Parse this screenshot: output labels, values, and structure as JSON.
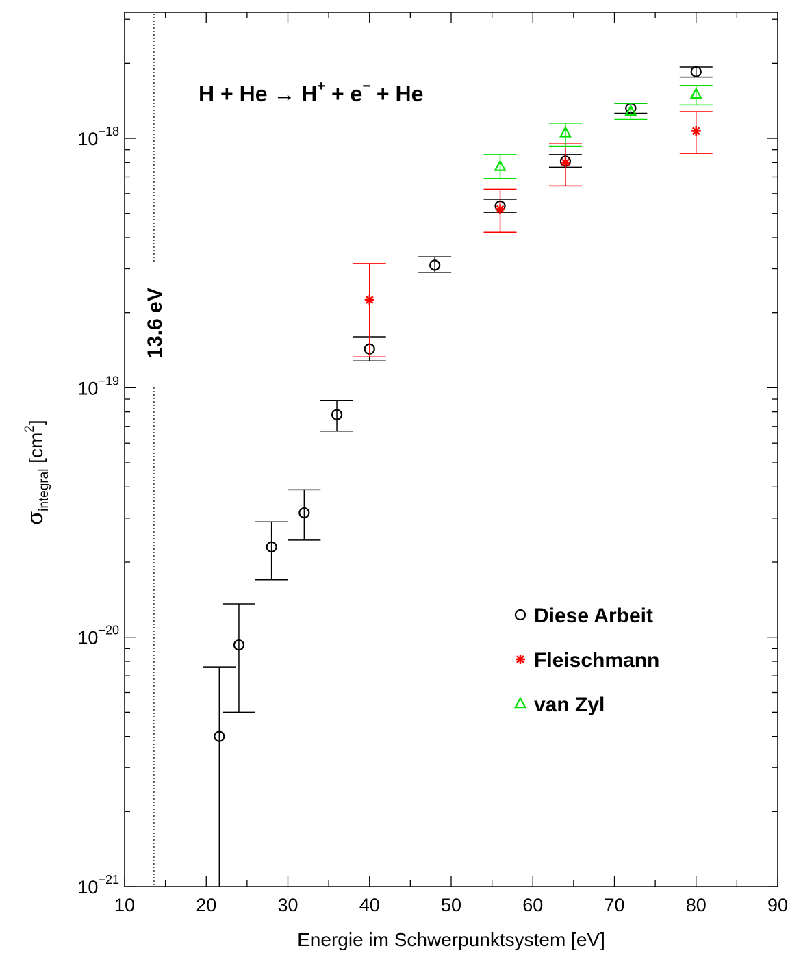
{
  "chart_data": {
    "type": "scatter",
    "annotation_reaction": {
      "lhs": "H + He",
      "arrow": "→",
      "product_base": "H",
      "product_sup": "+",
      "electron_base": " + e",
      "electron_sup": "−",
      "tail": " + He"
    },
    "xlabel": "Energie im Schwerpunktsystem [eV]",
    "ylabel_sigma": "σ",
    "ylabel_sub": "integral",
    "ylabel_unit": " [cm",
    "ylabel_unit_sup": "2",
    "ylabel_close": "]",
    "xlim": [
      10,
      90
    ],
    "ylim": [
      1e-21,
      3.2e-18
    ],
    "yscale": "log",
    "x_ticks": [
      "10",
      "20",
      "30",
      "40",
      "50",
      "60",
      "70",
      "80",
      "90"
    ],
    "y_ticks": [
      {
        "base": "10",
        "exp": "−21"
      },
      {
        "base": "10",
        "exp": "−20"
      },
      {
        "base": "10",
        "exp": "−19"
      },
      {
        "base": "10",
        "exp": "−18"
      }
    ],
    "threshold": {
      "x": 13.6,
      "label": "13.6 eV"
    },
    "legend_position": "lower-right",
    "series": [
      {
        "name": "Diese Arbeit",
        "marker": "circle",
        "color": "#000000",
        "points": [
          {
            "x": 21.6,
            "y": 4e-21,
            "lo": 9e-22,
            "hi": 7.6e-21
          },
          {
            "x": 24,
            "y": 9.3e-21,
            "lo": 5e-21,
            "hi": 1.36e-20
          },
          {
            "x": 28,
            "y": 2.3e-20,
            "lo": 1.7e-20,
            "hi": 2.9e-20
          },
          {
            "x": 32,
            "y": 3.15e-20,
            "lo": 2.45e-20,
            "hi": 3.9e-20
          },
          {
            "x": 36,
            "y": 7.8e-20,
            "lo": 6.7e-20,
            "hi": 8.9e-20
          },
          {
            "x": 40,
            "y": 1.43e-19,
            "lo": 1.28e-19,
            "hi": 1.6e-19
          },
          {
            "x": 48,
            "y": 3.1e-19,
            "lo": 2.9e-19,
            "hi": 3.35e-19
          },
          {
            "x": 56,
            "y": 5.35e-19,
            "lo": 5.05e-19,
            "hi": 5.7e-19
          },
          {
            "x": 64,
            "y": 8.1e-19,
            "lo": 7.65e-19,
            "hi": 8.6e-19
          },
          {
            "x": 72,
            "y": 1.32e-18,
            "lo": 1.26e-18,
            "hi": 1.38e-18
          },
          {
            "x": 80,
            "y": 1.85e-18,
            "lo": 1.76e-18,
            "hi": 1.93e-18
          }
        ]
      },
      {
        "name": "Fleischmann",
        "marker": "asterisk",
        "color": "#ff0000",
        "points": [
          {
            "x": 40,
            "y": 2.25e-19,
            "lo": 1.33e-19,
            "hi": 3.15e-19
          },
          {
            "x": 56,
            "y": 5.2e-19,
            "lo": 4.2e-19,
            "hi": 6.25e-19
          },
          {
            "x": 64,
            "y": 8e-19,
            "lo": 6.45e-19,
            "hi": 9.5e-19
          },
          {
            "x": 80,
            "y": 1.07e-18,
            "lo": 8.7e-19,
            "hi": 1.28e-18
          }
        ]
      },
      {
        "name": "van Zyl",
        "marker": "triangle",
        "color": "#00e000",
        "points": [
          {
            "x": 56,
            "y": 7.7e-19,
            "lo": 6.9e-19,
            "hi": 8.6e-19
          },
          {
            "x": 64,
            "y": 1.05e-18,
            "lo": 9.3e-19,
            "hi": 1.15e-18
          },
          {
            "x": 72,
            "y": 1.28e-18,
            "lo": 1.19e-18,
            "hi": 1.38e-18
          },
          {
            "x": 80,
            "y": 1.5e-18,
            "lo": 1.36e-18,
            "hi": 1.63e-18
          }
        ]
      }
    ]
  }
}
